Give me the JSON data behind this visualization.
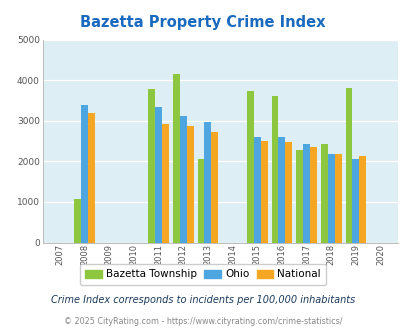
{
  "title": "Bazetta Property Crime Index",
  "all_years": [
    2007,
    2008,
    2009,
    2010,
    2011,
    2012,
    2013,
    2014,
    2015,
    2016,
    2017,
    2018,
    2019,
    2020
  ],
  "data_years": [
    2008,
    2011,
    2012,
    2013,
    2015,
    2016,
    2017,
    2018,
    2019
  ],
  "bazetta": [
    1080,
    3780,
    4150,
    2060,
    3730,
    3620,
    2280,
    2430,
    3800
  ],
  "ohio": [
    3380,
    3340,
    3120,
    2960,
    2590,
    2590,
    2440,
    2190,
    2060
  ],
  "national": [
    3200,
    2920,
    2860,
    2730,
    2490,
    2470,
    2360,
    2190,
    2120
  ],
  "color_bazetta": "#8dc63f",
  "color_ohio": "#4da6e0",
  "color_national": "#f5a623",
  "ylim": [
    0,
    5000
  ],
  "yticks": [
    0,
    1000,
    2000,
    3000,
    4000,
    5000
  ],
  "bg_color": "#deeef5",
  "title_color": "#1a6abf",
  "footer1_color": "#1a3a5c",
  "footer2_color": "#888888",
  "footer1": "Crime Index corresponds to incidents per 100,000 inhabitants",
  "footer2": "© 2025 CityRating.com - https://www.cityrating.com/crime-statistics/",
  "legend_labels": [
    "Bazetta Township",
    "Ohio",
    "National"
  ],
  "bar_width": 0.28
}
